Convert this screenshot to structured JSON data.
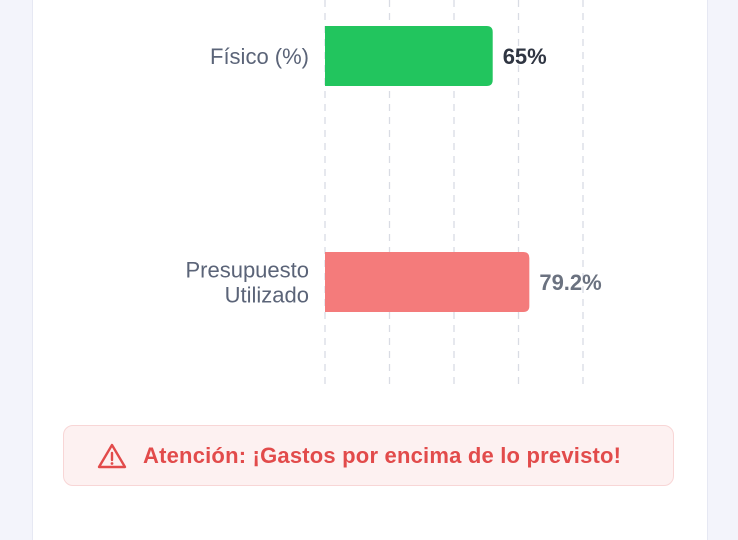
{
  "chart_data": {
    "type": "bar",
    "orientation": "horizontal",
    "categories": [
      [
        "Físico (%)"
      ],
      [
        "Presupuesto",
        "Utilizado"
      ]
    ],
    "values": [
      65,
      79.2
    ],
    "value_labels": [
      "65%",
      "79.2%"
    ],
    "colors": [
      "#22c55e",
      "#f47b7b"
    ],
    "value_label_colors": [
      "#2f3542",
      "#6b7280"
    ],
    "xlim": [
      0,
      100
    ],
    "grid": "vertical-dashed"
  },
  "alert": {
    "icon": "warning-triangle-icon",
    "text": "Atención: ¡Gastos por encima de lo previsto!",
    "color": "#e24b4b"
  }
}
